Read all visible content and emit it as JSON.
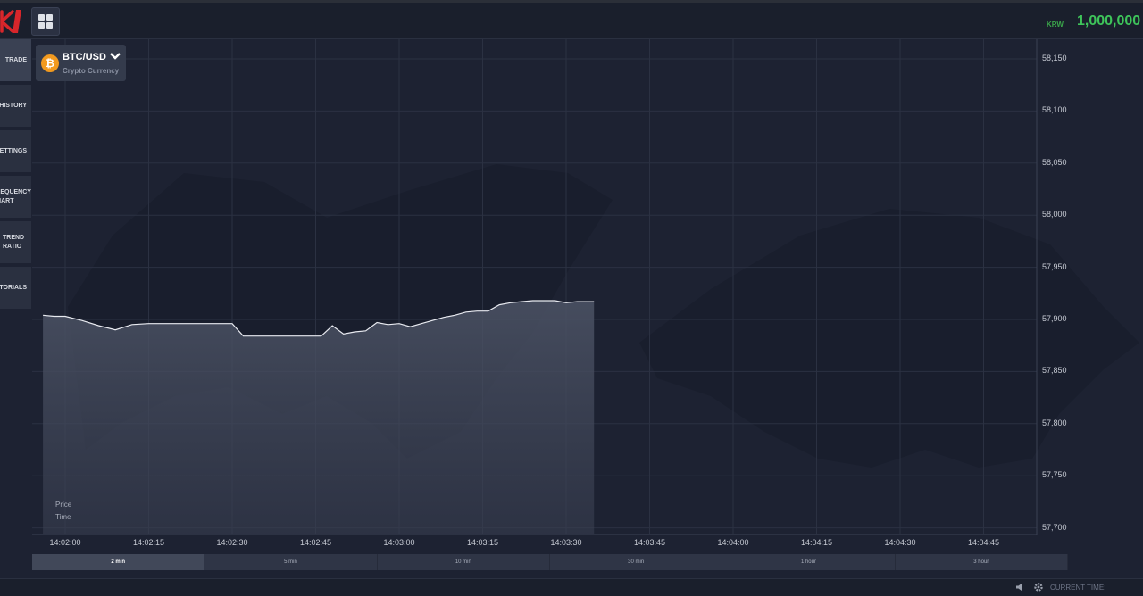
{
  "header": {
    "logo_text": "K",
    "balance_currency": "KRW",
    "balance_value": "1,000,000"
  },
  "sidebar": {
    "items": [
      {
        "label": "TRADE",
        "active": true
      },
      {
        "label": "HISTORY",
        "active": false
      },
      {
        "label": "SETTINGS",
        "active": false
      },
      {
        "label": "FREQUENCY CHART",
        "active": false
      },
      {
        "label": "TREND RATIO",
        "active": false
      },
      {
        "label": "TUTORIALS",
        "active": false
      }
    ]
  },
  "asset": {
    "pair": "BTC/USD",
    "category": "Crypto Currency",
    "icon": "bitcoin-icon",
    "icon_glyph": "₿"
  },
  "legend": {
    "price": "Price",
    "time": "Time"
  },
  "chart_data": {
    "type": "area",
    "y_ticks": [
      "58,150",
      "58,100",
      "58,050",
      "58,000",
      "57,950",
      "57,900",
      "57,850",
      "57,800",
      "57,750",
      "57,700"
    ],
    "x_ticks": [
      "14:02:00",
      "14:02:15",
      "14:02:30",
      "14:02:45",
      "14:03:00",
      "14:03:15",
      "14:03:30",
      "14:03:45",
      "14:04:00",
      "14:04:15",
      "14:04:30",
      "14:04:45"
    ],
    "ylim": [
      57700,
      58150
    ],
    "xlim_seconds_after_14_02_00": [
      0,
      165
    ],
    "series": [
      {
        "x_seconds_after_14_02_00": [
          -4,
          -2,
          0,
          3,
          6,
          9,
          12,
          15,
          18,
          21,
          24,
          27,
          30,
          32,
          35,
          38,
          41,
          44,
          46,
          48,
          50,
          52,
          54,
          56,
          58,
          60,
          62,
          64,
          66,
          68,
          70,
          72,
          74,
          76,
          78,
          80,
          82,
          84,
          86,
          88,
          90,
          92,
          94,
          95
        ],
        "y": [
          57904,
          57903,
          57903,
          57899,
          57894,
          57890,
          57895,
          57896,
          57896,
          57896,
          57896,
          57896,
          57896,
          57884,
          57884,
          57884,
          57884,
          57884,
          57884,
          57894,
          57886,
          57888,
          57889,
          57897,
          57895,
          57896,
          57893,
          57896,
          57899,
          57902,
          57904,
          57907,
          57908,
          57908,
          57914,
          57916,
          57917,
          57918,
          57918,
          57918,
          57916,
          57917,
          57917,
          57917
        ]
      }
    ],
    "grid": true,
    "colors": {
      "line": "#e8eaf0",
      "fill": "#4a5061",
      "grid": "#2b3142"
    }
  },
  "ranges": [
    {
      "label": "2 min",
      "active": true
    },
    {
      "label": "5 min",
      "active": false
    },
    {
      "label": "10 min",
      "active": false
    },
    {
      "label": "30 min",
      "active": false
    },
    {
      "label": "1 hour",
      "active": false
    },
    {
      "label": "3 hour",
      "active": false
    }
  ],
  "footer": {
    "current_time_label": "CURRENT TIME:"
  }
}
